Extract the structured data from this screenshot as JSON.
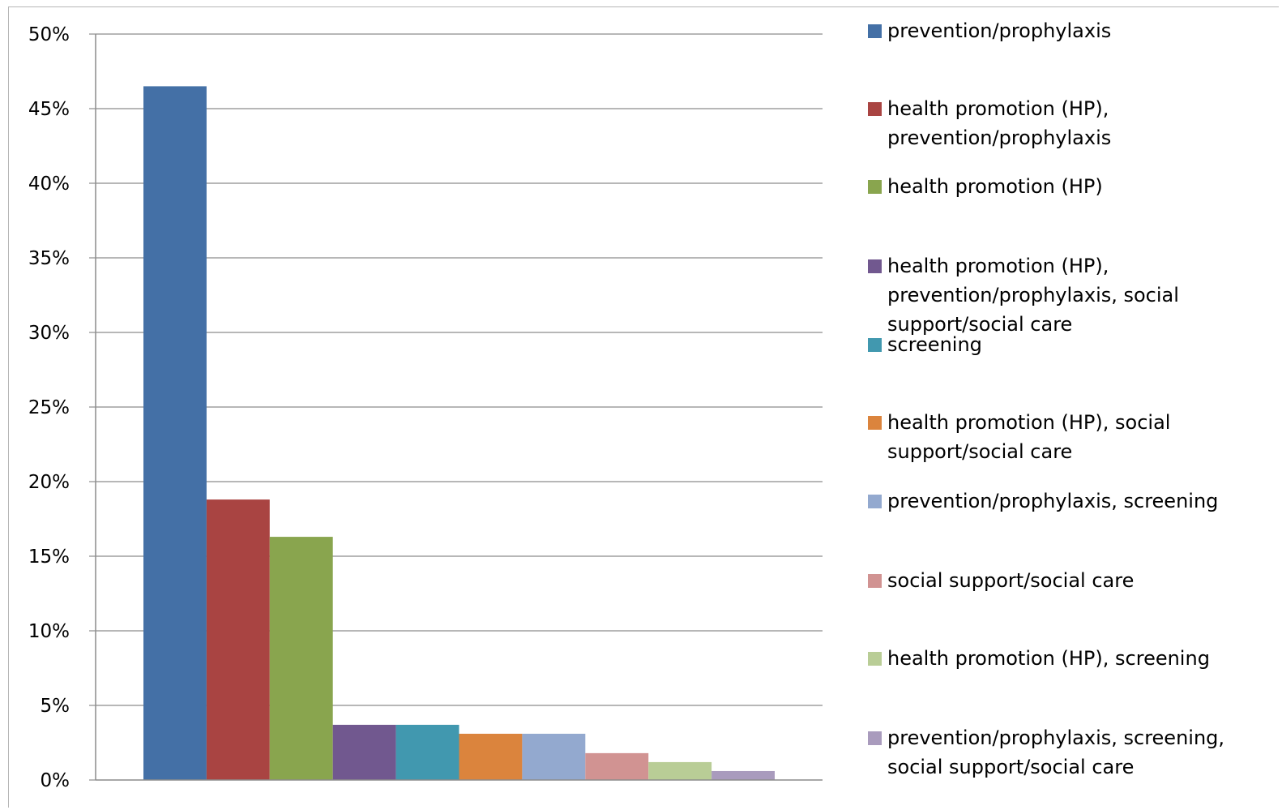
{
  "chart_data": {
    "type": "bar",
    "ylim": [
      0,
      0.5
    ],
    "yticks": [
      {
        "value": 0.5,
        "label": "50%"
      },
      {
        "value": 0.45,
        "label": "45%"
      },
      {
        "value": 0.4,
        "label": "40%"
      },
      {
        "value": 0.35,
        "label": "35%"
      },
      {
        "value": 0.3,
        "label": "30%"
      },
      {
        "value": 0.25,
        "label": "25%"
      },
      {
        "value": 0.2,
        "label": "20%"
      },
      {
        "value": 0.15,
        "label": "15%"
      },
      {
        "value": 0.1,
        "label": "10%"
      },
      {
        "value": 0.05,
        "label": "5%"
      },
      {
        "value": 0.0,
        "label": "0%"
      }
    ],
    "grid": true,
    "legend_position": "right",
    "series": [
      {
        "name": "prevention/prophylaxis",
        "value": 0.465,
        "color": "#4470a6",
        "label_lines": [
          "prevention/prophylaxis"
        ]
      },
      {
        "name": "health promotion (HP), prevention/prophylaxis",
        "value": 0.188,
        "color": "#a94442",
        "label_lines": [
          "health promotion (HP),",
          "prevention/prophylaxis"
        ]
      },
      {
        "name": "health promotion (HP)",
        "value": 0.163,
        "color": "#89a54e",
        "label_lines": [
          "health promotion (HP)"
        ]
      },
      {
        "name": "health promotion (HP), prevention/prophylaxis, social support/social care",
        "value": 0.037,
        "color": "#71588f",
        "label_lines": [
          "health promotion (HP),",
          "prevention/prophylaxis, social",
          "support/social care"
        ]
      },
      {
        "name": "screening",
        "value": 0.037,
        "color": "#4198af",
        "label_lines": [
          "screening"
        ]
      },
      {
        "name": "health promotion (HP), social support/social care",
        "value": 0.031,
        "color": "#db843d",
        "label_lines": [
          "health promotion (HP), social",
          "support/social care"
        ]
      },
      {
        "name": "prevention/prophylaxis, screening",
        "value": 0.031,
        "color": "#93a9cf",
        "label_lines": [
          "prevention/prophylaxis, screening"
        ]
      },
      {
        "name": "social support/social care",
        "value": 0.018,
        "color": "#d19392",
        "label_lines": [
          "social support/social care"
        ]
      },
      {
        "name": "health promotion (HP), screening",
        "value": 0.012,
        "color": "#b9cd96",
        "label_lines": [
          "health promotion (HP), screening"
        ]
      },
      {
        "name": "prevention/prophylaxis, screening, social support/social care",
        "value": 0.006,
        "color": "#a99bbd",
        "label_lines": [
          "prevention/prophylaxis, screening,",
          "social support/social care"
        ]
      }
    ]
  }
}
